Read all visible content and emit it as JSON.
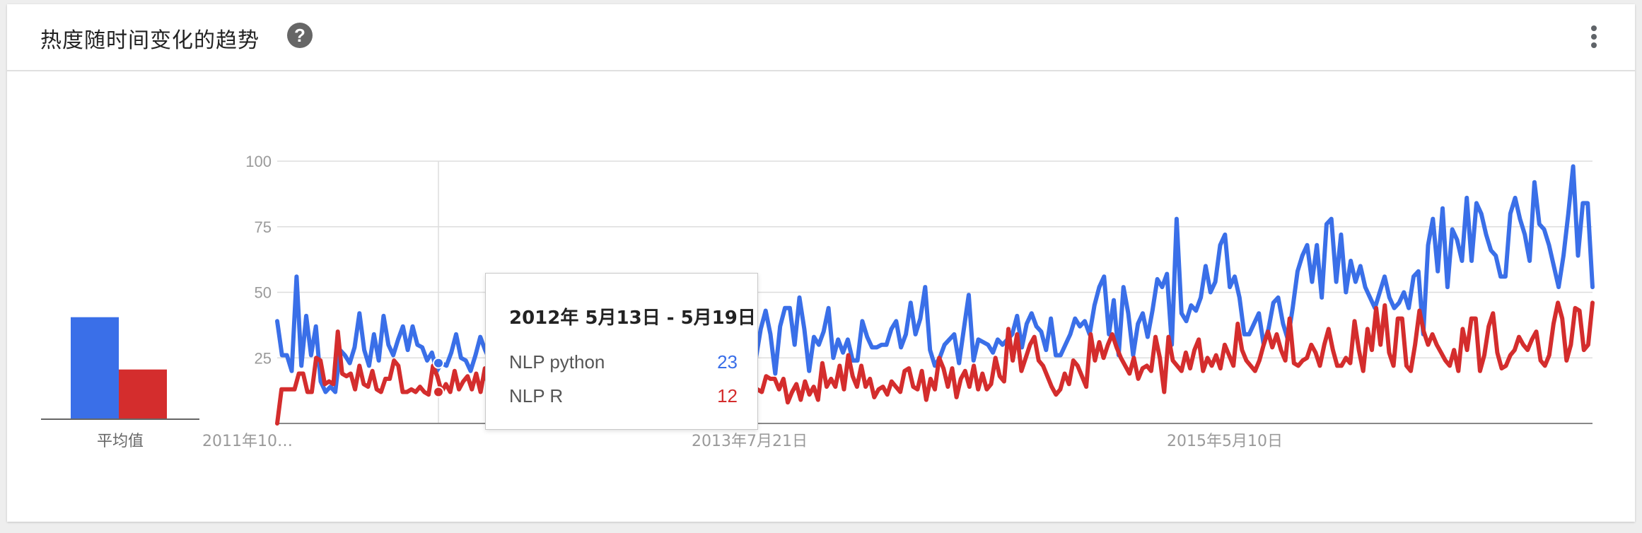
{
  "header": {
    "title": "热度随时间变化的趋势",
    "help_icon": "help-circle-icon",
    "more_icon": "more-vert-icon"
  },
  "average": {
    "label": "平均值",
    "values": [
      39,
      19
    ]
  },
  "tooltip": {
    "date": "2012年 5月13日 - 5月19日",
    "rows": [
      {
        "name": "NLP python",
        "value": "23",
        "color": "#3a6fe8"
      },
      {
        "name": "NLP R",
        "value": "12",
        "color": "#d42d2d"
      }
    ]
  },
  "chart_data": {
    "type": "line",
    "x_ticks": [
      "2011年10…",
      "2013年7月21日",
      "2015年5月10日"
    ],
    "y_ticks": [
      "100",
      "75",
      "50",
      "25"
    ],
    "ylim": [
      0,
      100
    ],
    "grid": true,
    "series": [
      {
        "name": "NLP python",
        "color": "#3a6fe8",
        "values": [
          39,
          26,
          26,
          20,
          56,
          22,
          41,
          26,
          37,
          16,
          12,
          14,
          12,
          28,
          26,
          23,
          29,
          42,
          28,
          22,
          34,
          24,
          41,
          30,
          26,
          32,
          37,
          28,
          37,
          30,
          29,
          24,
          27,
          20,
          23,
          22,
          27,
          34,
          25,
          24,
          20,
          26,
          33,
          28,
          24,
          30,
          35,
          28,
          27,
          25,
          24,
          28,
          34,
          31,
          27,
          32,
          37,
          33,
          28,
          34,
          41,
          40,
          29,
          24,
          28,
          33,
          35,
          34,
          30,
          24,
          27,
          33,
          36,
          31,
          27,
          30,
          32,
          26,
          22,
          35,
          32,
          31,
          28,
          26,
          31,
          33,
          30,
          24,
          34,
          44,
          35,
          31,
          24,
          43,
          40,
          40,
          43,
          34,
          30,
          25,
          36,
          43,
          34,
          19,
          37,
          44,
          44,
          30,
          48,
          36,
          20,
          33,
          30,
          35,
          44,
          25,
          32,
          27,
          32,
          24,
          24,
          39,
          33,
          29,
          29,
          30,
          30,
          36,
          39,
          29,
          34,
          46,
          34,
          40,
          52,
          28,
          22,
          25,
          30,
          32,
          34,
          23,
          36,
          49,
          24,
          32,
          31,
          30,
          27,
          32,
          30,
          32,
          34,
          41,
          29,
          38,
          42,
          37,
          35,
          28,
          40,
          26,
          26,
          30,
          34,
          40,
          37,
          39,
          34,
          45,
          52,
          56,
          34,
          47,
          26,
          52,
          42,
          26,
          38,
          42,
          33,
          43,
          55,
          52,
          57,
          30,
          78,
          42,
          39,
          45,
          43,
          48,
          60,
          50,
          54,
          68,
          72,
          52,
          56,
          48,
          34,
          34,
          38,
          42,
          30,
          36,
          46,
          48,
          38,
          32,
          44,
          58,
          64,
          68,
          54,
          68,
          48,
          76,
          78,
          54,
          72,
          50,
          62,
          54,
          60,
          52,
          48,
          44,
          50,
          56,
          48,
          44,
          46,
          50,
          44,
          56,
          58,
          34,
          68,
          78,
          58,
          82,
          52,
          74,
          70,
          62,
          86,
          62,
          84,
          80,
          72,
          66,
          64,
          56,
          56,
          80,
          86,
          78,
          72,
          62,
          92,
          76,
          74,
          68,
          60,
          52,
          64,
          80,
          98,
          64,
          84,
          84,
          52
        ]
      },
      {
        "name": "NLP R",
        "color": "#d42d2d",
        "values": [
          0,
          13,
          13,
          13,
          13,
          19,
          19,
          12,
          12,
          25,
          24,
          15,
          16,
          15,
          35,
          19,
          18,
          19,
          13,
          22,
          15,
          14,
          20,
          13,
          12,
          17,
          17,
          24,
          22,
          12,
          12,
          13,
          12,
          14,
          12,
          11,
          22,
          18,
          12,
          15,
          12,
          20,
          13,
          16,
          18,
          13,
          19,
          12,
          21,
          12,
          18,
          13,
          16,
          12,
          19,
          13,
          18,
          12,
          22,
          14,
          12,
          20,
          14,
          17,
          12,
          19,
          13,
          21,
          14,
          12,
          16,
          13,
          17,
          12,
          20,
          13,
          18,
          14,
          12,
          16,
          12,
          16,
          12,
          12,
          17,
          10,
          14,
          11,
          12,
          13,
          10,
          9,
          15,
          9,
          9,
          12,
          13,
          16,
          13,
          12,
          14,
          13,
          14,
          11,
          9,
          11,
          19,
          17,
          13,
          18,
          10,
          13,
          12,
          18,
          17,
          17,
          13,
          17,
          8,
          12,
          15,
          9,
          16,
          11,
          14,
          9,
          23,
          14,
          17,
          14,
          22,
          13,
          26,
          18,
          14,
          22,
          14,
          17,
          10,
          13,
          14,
          11,
          16,
          14,
          12,
          20,
          21,
          14,
          13,
          20,
          9,
          17,
          13,
          25,
          21,
          14,
          21,
          10,
          17,
          20,
          14,
          22,
          13,
          19,
          13,
          15,
          25,
          18,
          16,
          36,
          24,
          34,
          20,
          25,
          30,
          33,
          24,
          22,
          18,
          14,
          11,
          13,
          19,
          15,
          24,
          22,
          18,
          14,
          34,
          24,
          31,
          25,
          30,
          34,
          29,
          25,
          22,
          19,
          25,
          17,
          21,
          22,
          20,
          33,
          25,
          12,
          33,
          24,
          22,
          20,
          27,
          21,
          28,
          32,
          20,
          25,
          22,
          26,
          21,
          30,
          26,
          22,
          38,
          28,
          24,
          22,
          20,
          24,
          30,
          35,
          29,
          34,
          28,
          24,
          40,
          23,
          22,
          24,
          25,
          30,
          27,
          22,
          30,
          36,
          28,
          22,
          22,
          25,
          23,
          39,
          28,
          20,
          36,
          28,
          44,
          30,
          45,
          27,
          22,
          40,
          40,
          22,
          20,
          30,
          43,
          35,
          30,
          34,
          30,
          27,
          24,
          22,
          28,
          20,
          36,
          28,
          40,
          40,
          20,
          26,
          37,
          42,
          27,
          21,
          22,
          26,
          28,
          33,
          30,
          28,
          32,
          35,
          24,
          22,
          26,
          38,
          46,
          40,
          24,
          30,
          44,
          43,
          28,
          30,
          46
        ]
      }
    ]
  }
}
